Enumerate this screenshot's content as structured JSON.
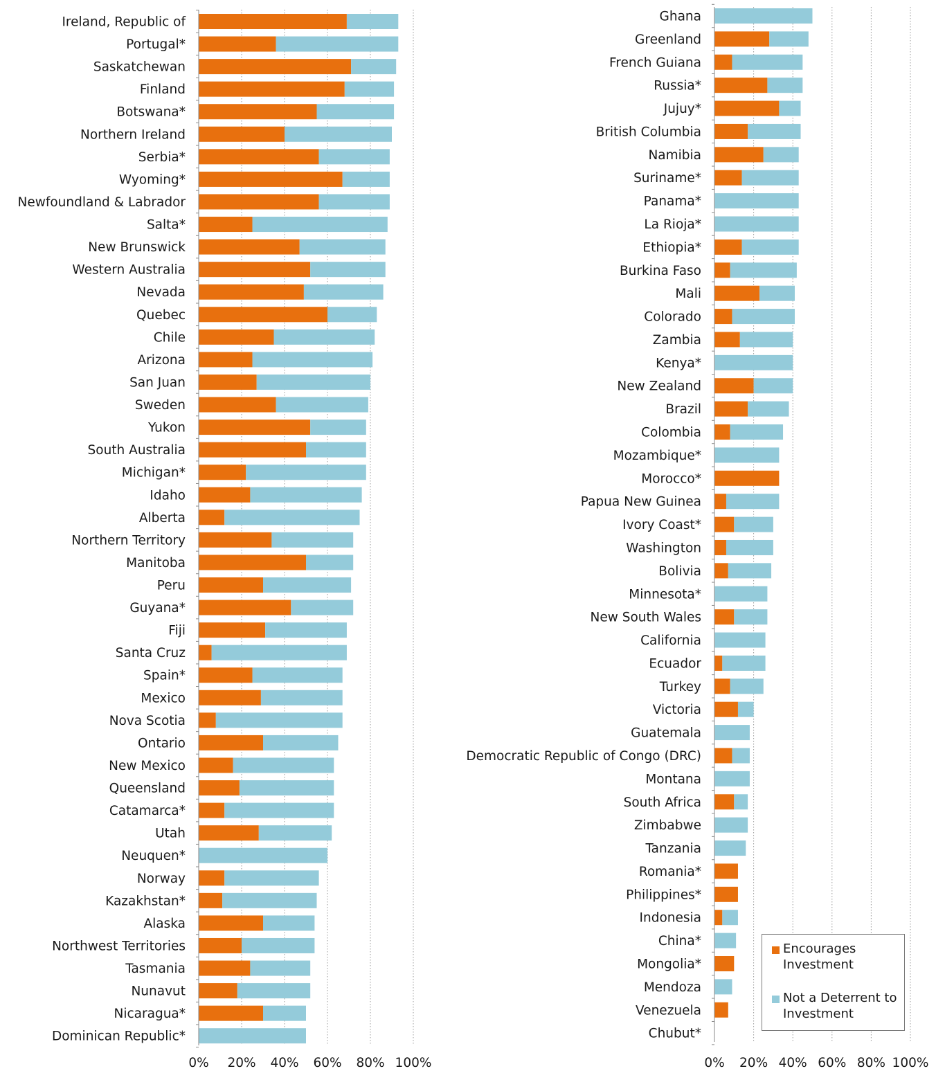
{
  "chart_data": [
    {
      "type": "bar",
      "orientation": "horizontal",
      "stacked": true,
      "xlim": [
        0,
        100
      ],
      "x_ticks": [
        "0%",
        "20%",
        "40%",
        "60%",
        "80%",
        "100%"
      ],
      "grid": "vertical dotted",
      "categories": [
        "Ireland, Republic of",
        "Portugal*",
        "Saskatchewan",
        "Finland",
        "Botswana*",
        "Northern Ireland",
        "Serbia*",
        "Wyoming*",
        "Newfoundland & Labrador",
        "Salta*",
        "New Brunswick",
        "Western Australia",
        "Nevada",
        "Quebec",
        "Chile",
        "Arizona",
        "San Juan",
        "Sweden",
        "Yukon",
        "South Australia",
        "Michigan*",
        "Idaho",
        "Alberta",
        "Northern Territory",
        "Manitoba",
        "Peru",
        "Guyana*",
        "Fiji",
        "Santa Cruz",
        "Spain*",
        "Mexico",
        "Nova Scotia",
        "Ontario",
        "New Mexico",
        "Queensland",
        "Catamarca*",
        "Utah",
        "Neuquen*",
        "Norway",
        "Kazakhstan*",
        "Alaska",
        "Northwest Territories",
        "Tasmania",
        "Nunavut",
        "Nicaragua*",
        "Dominican Republic*"
      ],
      "series": [
        {
          "name": "Encourages Investment",
          "color": "#E8700E",
          "values": [
            69,
            36,
            71,
            68,
            55,
            40,
            56,
            67,
            56,
            25,
            47,
            52,
            49,
            60,
            35,
            25,
            27,
            36,
            52,
            50,
            22,
            24,
            12,
            34,
            50,
            30,
            43,
            31,
            6,
            25,
            29,
            8,
            30,
            16,
            19,
            12,
            28,
            0,
            12,
            11,
            30,
            20,
            24,
            18,
            30,
            0
          ]
        },
        {
          "name": "Not a Deterrent to Investment",
          "color": "#94CBDA",
          "values": [
            24,
            57,
            21,
            23,
            36,
            50,
            33,
            22,
            33,
            63,
            40,
            35,
            37,
            23,
            47,
            56,
            53,
            43,
            26,
            28,
            56,
            52,
            63,
            38,
            22,
            41,
            29,
            38,
            63,
            42,
            38,
            59,
            35,
            47,
            44,
            51,
            34,
            60,
            44,
            44,
            24,
            34,
            28,
            34,
            20,
            50
          ]
        }
      ]
    },
    {
      "type": "bar",
      "orientation": "horizontal",
      "stacked": true,
      "xlim": [
        0,
        100
      ],
      "x_ticks": [
        "0%",
        "20%",
        "40%",
        "60%",
        "80%",
        "100%"
      ],
      "grid": "vertical dotted",
      "legend": "bottom-right",
      "categories": [
        "Ghana",
        "Greenland",
        "French Guiana",
        "Russia*",
        "Jujuy*",
        "British Columbia",
        "Namibia",
        "Suriname*",
        "Panama*",
        "La Rioja*",
        "Ethiopia*",
        "Burkina Faso",
        "Mali",
        "Colorado",
        "Zambia",
        "Kenya*",
        "New Zealand",
        "Brazil",
        "Colombia",
        "Mozambique*",
        "Morocco*",
        "Papua New Guinea",
        "Ivory Coast*",
        "Washington",
        "Bolivia",
        "Minnesota*",
        "New South Wales",
        "California",
        "Ecuador",
        "Turkey",
        "Victoria",
        "Guatemala",
        "Democratic Republic of Congo (DRC)",
        "Montana",
        "South Africa",
        "Zimbabwe",
        "Tanzania",
        "Romania*",
        "Philippines*",
        "Indonesia",
        "China*",
        "Mongolia*",
        "Mendoza",
        "Venezuela",
        "Chubut*"
      ],
      "series": [
        {
          "name": "Encourages Investment",
          "color": "#E8700E",
          "values": [
            0,
            28,
            9,
            27,
            33,
            17,
            25,
            14,
            0,
            0,
            14,
            8,
            23,
            9,
            13,
            0,
            20,
            17,
            8,
            0,
            33,
            6,
            10,
            6,
            7,
            0,
            10,
            0,
            4,
            8,
            12,
            0,
            9,
            0,
            10,
            0,
            0,
            12,
            12,
            4,
            0,
            10,
            0,
            7,
            0
          ]
        },
        {
          "name": "Not a Deterrent to Investment",
          "color": "#94CBDA",
          "values": [
            50,
            20,
            36,
            18,
            11,
            27,
            18,
            29,
            43,
            43,
            29,
            34,
            18,
            32,
            27,
            40,
            20,
            21,
            27,
            33,
            0,
            27,
            20,
            24,
            22,
            27,
            17,
            26,
            22,
            17,
            8,
            18,
            9,
            18,
            7,
            17,
            16,
            0,
            0,
            8,
            11,
            0,
            9,
            0,
            0
          ]
        }
      ]
    }
  ],
  "legend": {
    "encourages": "Encourages Investment",
    "not_deterrent": "Not a Deterrent to Investment"
  }
}
